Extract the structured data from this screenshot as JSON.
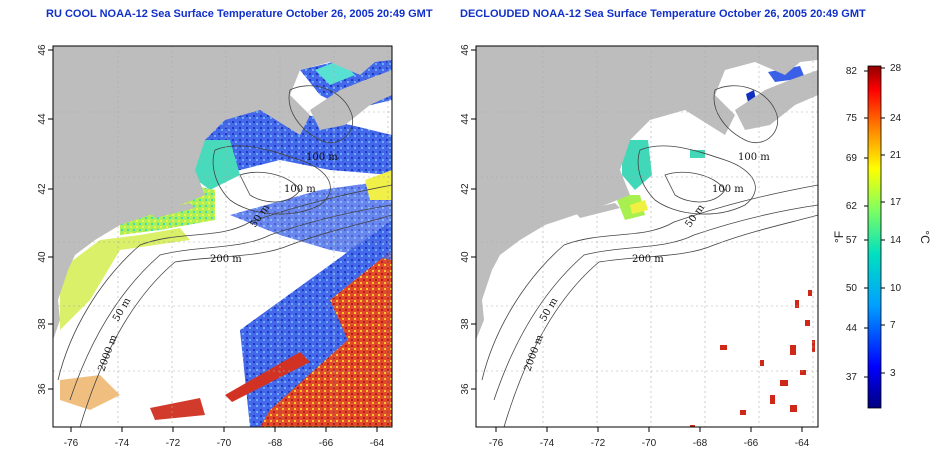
{
  "titles": {
    "left": "RU COOL NOAA-12 Sea Surface Temperature October 26, 2005 20:49 GMT",
    "right": "DECLOUDED NOAA-12 Sea Surface Temperature October 26, 2005 20:49 GMT"
  },
  "axes": {
    "x_ticks": [
      "-76",
      "-74",
      "-72",
      "-70",
      "-68",
      "-66",
      "-64"
    ],
    "y_ticks": [
      "36",
      "38",
      "40",
      "42",
      "44",
      "46"
    ]
  },
  "depth_labels": {
    "left": [
      "100 m",
      "100 m",
      "50 m",
      "200 m",
      "50 m",
      "2000 m"
    ],
    "right": [
      "100 m",
      "100 m",
      "50 m",
      "200 m",
      "50 m",
      "2000 m"
    ]
  },
  "colorbar": {
    "fahrenheit_unit": "°F",
    "celsius_unit": "°C",
    "fahrenheit_ticks": [
      "82",
      "75",
      "69",
      "62",
      "57",
      "50",
      "44",
      "37"
    ],
    "celsius_ticks": [
      "28",
      "24",
      "21",
      "17",
      "14",
      "10",
      "7",
      "3"
    ]
  },
  "colors": {
    "land": "#bdbdbd",
    "title": "#1030c8",
    "cold": "#0a1aa8",
    "warm": "#c8141e"
  }
}
